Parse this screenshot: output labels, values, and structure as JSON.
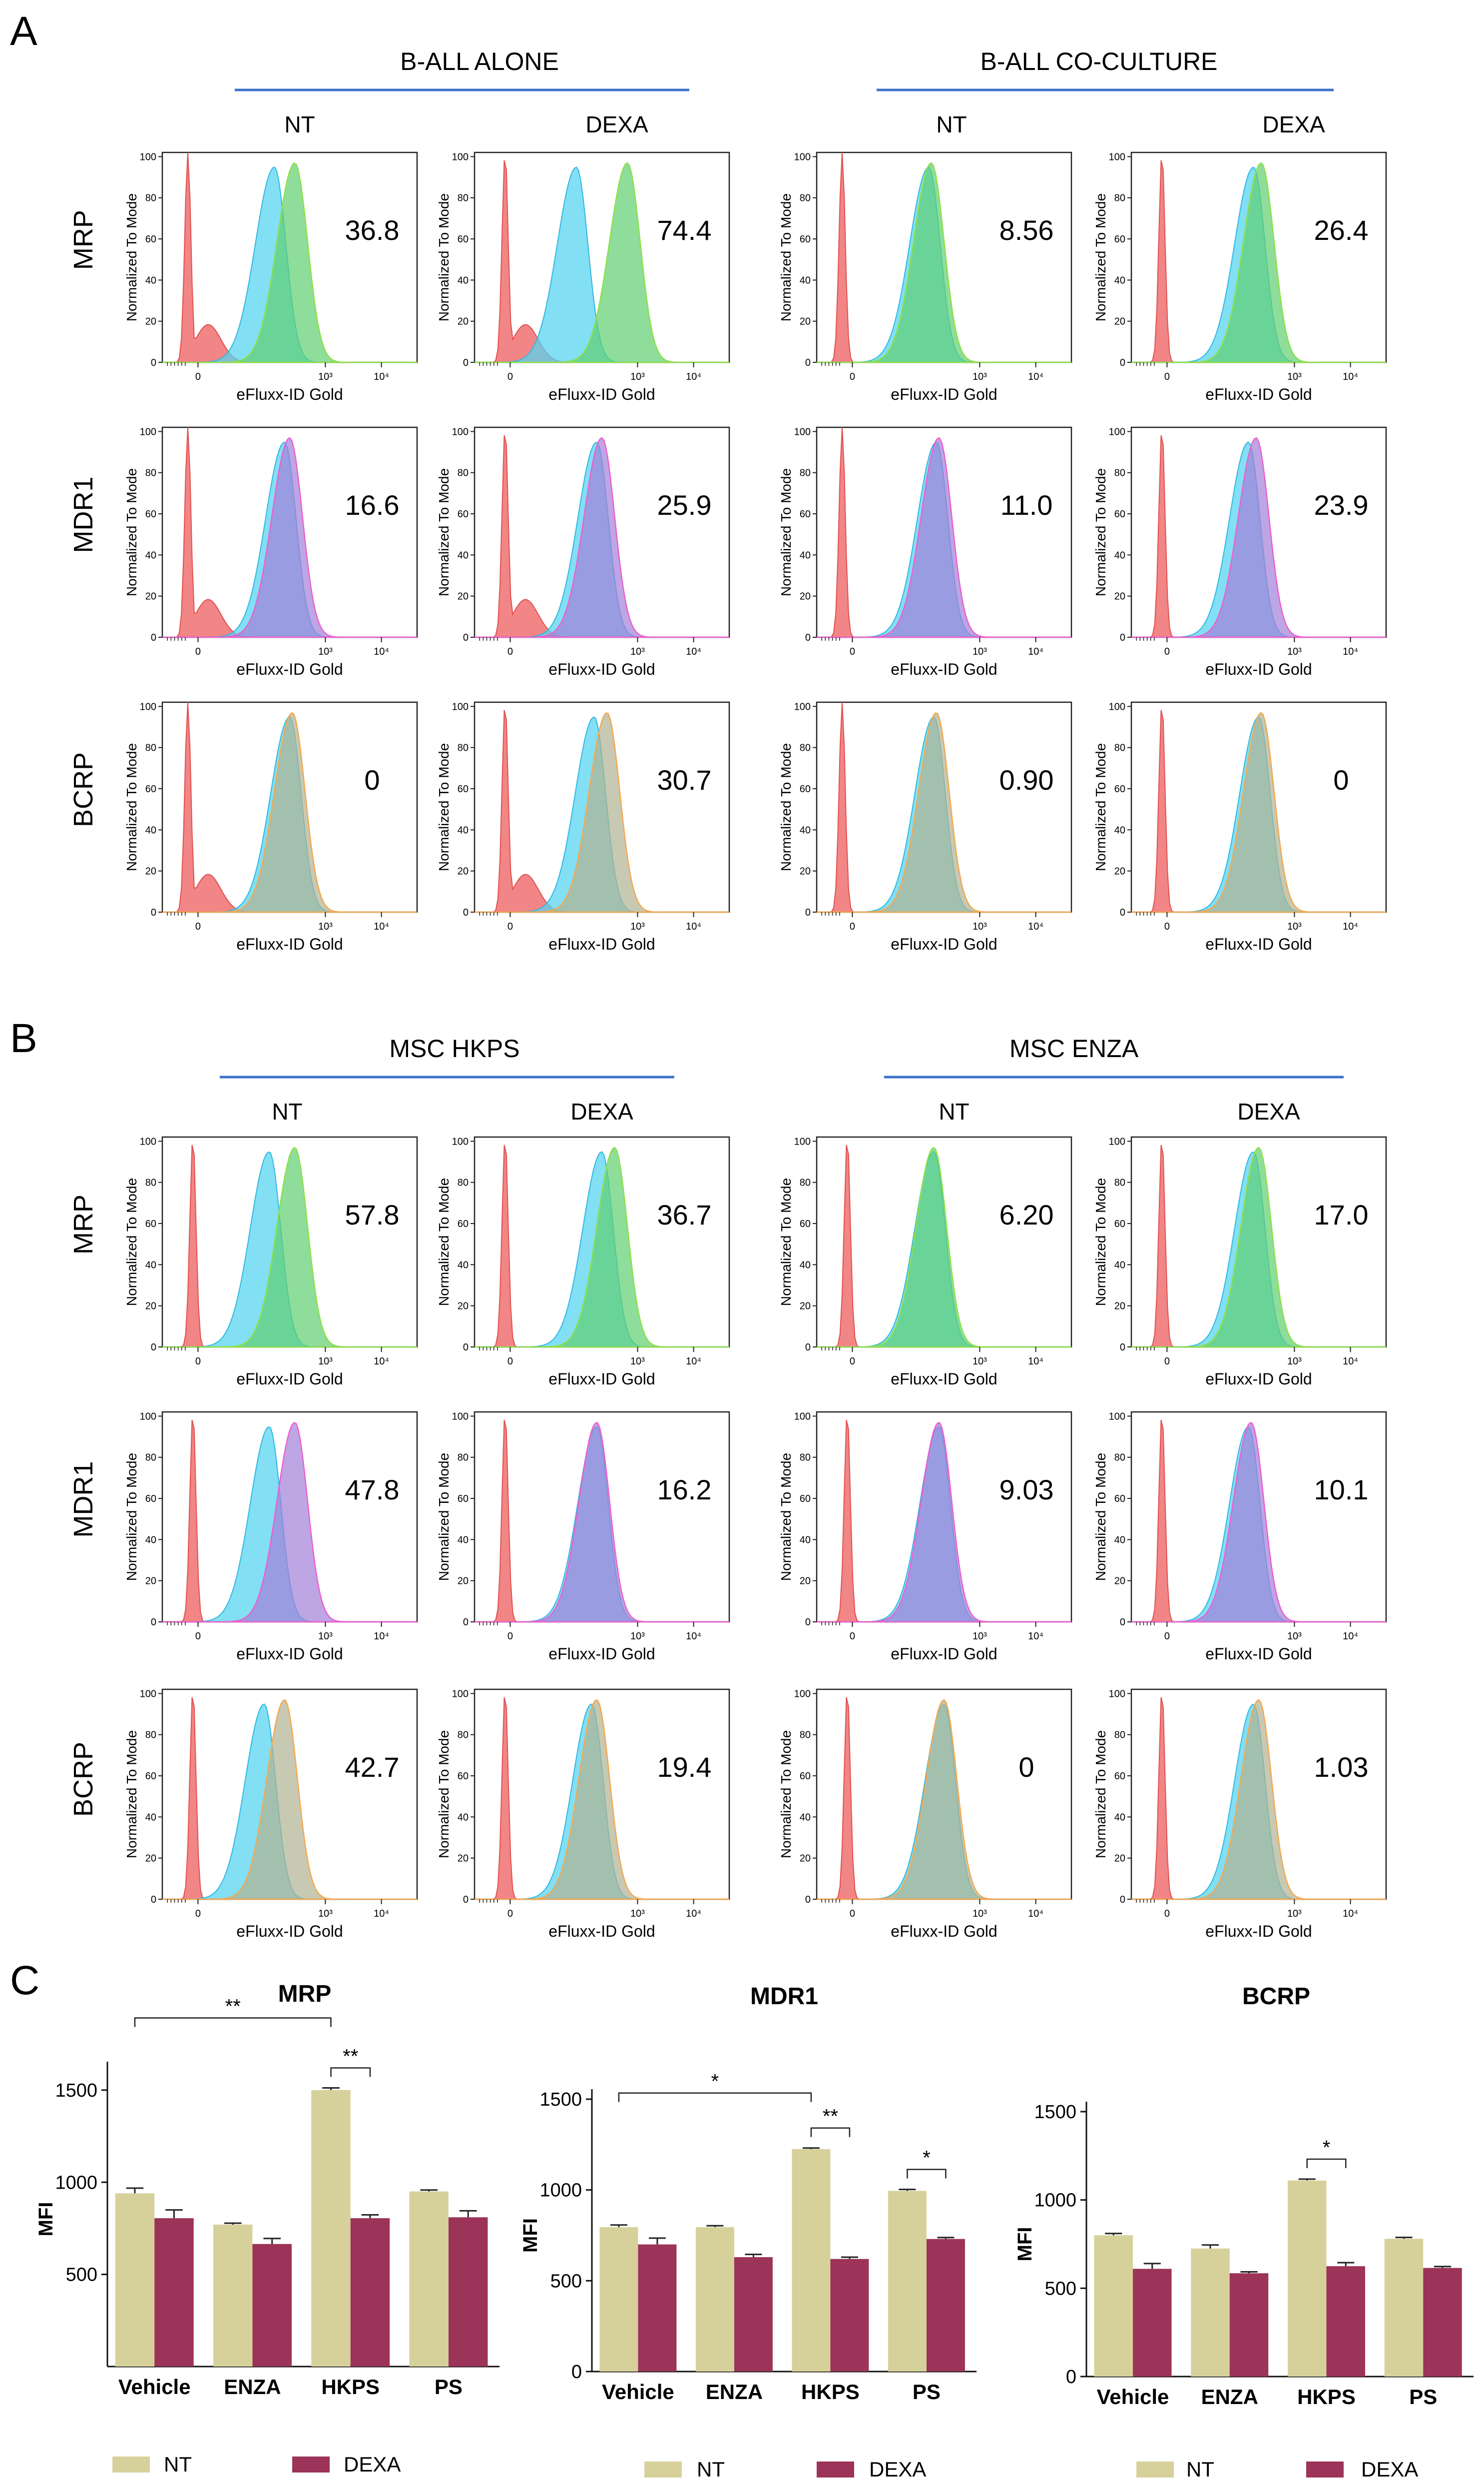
{
  "colors": {
    "control": "#f07070",
    "nt": "#58d4f0",
    "mrp": "#8ee04a",
    "mdr1": "#ee5fd0",
    "bcrp": "#f5a850",
    "overlap_mrp": "#5fce70",
    "overlap_mdr1": "#a27fd8",
    "overlap_bcrp": "#b0b292",
    "section_rule": "#3b72c8",
    "bar_nt": "#d6d19a",
    "bar_dexa": "#9c3358"
  },
  "panel_a": {
    "letter": "A",
    "groups": [
      {
        "title": "B-ALL ALONE",
        "columns": [
          "NT",
          "DEXA"
        ]
      },
      {
        "title": "B-ALL CO-CULTURE",
        "columns": [
          "NT",
          "DEXA"
        ]
      }
    ]
  },
  "panel_b": {
    "letter": "B",
    "groups": [
      {
        "title": "MSC HKPS",
        "columns": [
          "NT",
          "DEXA"
        ]
      },
      {
        "title": "MSC ENZA",
        "columns": [
          "NT",
          "DEXA"
        ]
      }
    ]
  },
  "panel_c": {
    "letter": "C"
  },
  "histogram_axis": {
    "y_label": "Normalized To Mode",
    "y_ticks": [
      "0",
      "20",
      "40",
      "60",
      "80",
      "100"
    ],
    "x_label": "eFluxx-ID  Gold",
    "x_ticks": [
      "0",
      "10³",
      "10⁴"
    ]
  },
  "row_labels": [
    "MRP",
    "MDR1",
    "BCRP"
  ],
  "histograms_a": [
    [
      "36.8",
      "74.4",
      "8.56",
      "26.4"
    ],
    [
      "16.6",
      "25.9",
      "11.0",
      "23.9"
    ],
    [
      "0",
      "30.7",
      "0.90",
      "0"
    ]
  ],
  "histograms_b": [
    [
      "57.8",
      "36.7",
      "6.20",
      "17.0"
    ],
    [
      "47.8",
      "16.2",
      "9.03",
      "10.1"
    ],
    [
      "42.7",
      "19.4",
      "0",
      "1.03"
    ]
  ],
  "chart_data": [
    {
      "type": "bar",
      "title": "MRP",
      "ylabel": "MFI",
      "xlabel": "",
      "categories": [
        "Vehicle",
        "ENZA",
        "HKPS",
        "PS"
      ],
      "ylim": [
        0,
        1600
      ],
      "yticks": [
        500,
        1000,
        1500
      ],
      "series": [
        {
          "name": "NT",
          "values": [
            940,
            770,
            1500,
            950
          ],
          "errors": [
            28,
            8,
            12,
            8
          ]
        },
        {
          "name": "DEXA",
          "values": [
            805,
            665,
            805,
            810
          ],
          "errors": [
            45,
            30,
            18,
            35
          ]
        }
      ],
      "significance": [
        {
          "from": "Vehicle-NT",
          "to": "HKPS-NT",
          "label": "**"
        },
        {
          "from": "HKPS-NT",
          "to": "HKPS-DEXA",
          "label": "**"
        }
      ]
    },
    {
      "type": "bar",
      "title": "MDR1",
      "ylabel": "MFI",
      "xlabel": "",
      "categories": [
        "Vehicle",
        "ENZA",
        "HKPS",
        "PS"
      ],
      "ylim": [
        0,
        1500
      ],
      "yticks": [
        0,
        500,
        1000,
        1500
      ],
      "series": [
        {
          "name": "NT",
          "values": [
            795,
            795,
            1225,
            995
          ],
          "errors": [
            12,
            8,
            6,
            8
          ]
        },
        {
          "name": "DEXA",
          "values": [
            700,
            630,
            620,
            730
          ],
          "errors": [
            35,
            15,
            10,
            8
          ]
        }
      ],
      "significance": [
        {
          "from": "Vehicle-NT",
          "to": "HKPS-NT",
          "label": "*"
        },
        {
          "from": "HKPS-NT",
          "to": "HKPS-DEXA",
          "label": "**"
        },
        {
          "from": "PS-NT",
          "to": "PS-DEXA",
          "label": "*"
        }
      ]
    },
    {
      "type": "bar",
      "title": "BCRP",
      "ylabel": "MFI",
      "xlabel": "",
      "categories": [
        "Vehicle",
        "ENZA",
        "HKPS",
        "PS"
      ],
      "ylim": [
        0,
        1500
      ],
      "yticks": [
        0,
        500,
        1000,
        1500
      ],
      "series": [
        {
          "name": "NT",
          "values": [
            800,
            725,
            1110,
            780
          ],
          "errors": [
            10,
            20,
            8,
            8
          ]
        },
        {
          "name": "DEXA",
          "values": [
            610,
            585,
            625,
            615
          ],
          "errors": [
            30,
            8,
            20,
            8
          ]
        }
      ],
      "significance": [
        {
          "from": "HKPS-NT",
          "to": "HKPS-DEXA",
          "label": "*"
        }
      ]
    }
  ],
  "legend": {
    "nt": "NT",
    "dexa": "DEXA"
  }
}
